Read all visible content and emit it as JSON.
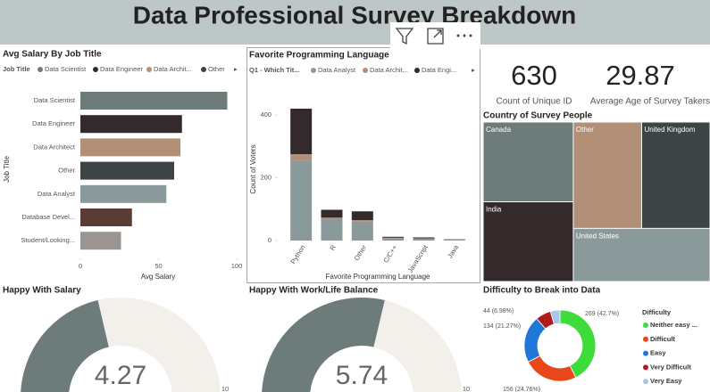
{
  "header": {
    "title": "Data Professional Survey Breakdown"
  },
  "cards": [
    {
      "value": 630,
      "label": "Count of Unique ID"
    },
    {
      "value": 29.87,
      "label": "Average Age of Survey Takers"
    }
  ],
  "chart_data": [
    {
      "type": "hbar",
      "title": "Avg Salary By Job Title",
      "legend_title": "Job Title",
      "legend": [
        "Data Scientist",
        "Data Engineer",
        "Data Archit...",
        "Other"
      ],
      "categories": [
        "Data Scientist",
        "Data Engineer",
        "Data Architect",
        "Other",
        "Data Analyst",
        "Database Devel...",
        "Student/Looking..."
      ],
      "values": [
        94,
        65,
        64,
        60,
        55,
        33,
        26
      ],
      "colors": [
        "#6e7b7b",
        "#352a2b",
        "#b28f77",
        "#3d4446",
        "#8a9a9b",
        "#5a3c35",
        "#9a9590"
      ],
      "xlabel": "Avg Salary",
      "ylabel": "Job Title",
      "xlim": [
        0,
        100
      ],
      "xticks": [
        0,
        50,
        100
      ]
    },
    {
      "type": "stacked_bar",
      "title": "Favorite Programming Language",
      "legend_title": "Q1 - Which Tit...",
      "categories": [
        "Python",
        "R",
        "Other",
        "C/C++",
        "JavaScript",
        "Java"
      ],
      "series": [
        {
          "name": "Data Analyst",
          "color": "#8a9a9b",
          "values": [
            255,
            68,
            60,
            8,
            6,
            3
          ]
        },
        {
          "name": "Data Archit...",
          "color": "#b28f77",
          "values": [
            20,
            5,
            5,
            1,
            1,
            0
          ]
        },
        {
          "name": "Data Engi...",
          "color": "#352a2b",
          "values": [
            145,
            25,
            28,
            3,
            3,
            1
          ]
        }
      ],
      "xlabel": "Favorite Programming Language",
      "ylabel": "Count of Voters",
      "ylim": [
        0,
        450
      ],
      "yticks": [
        0,
        200,
        400
      ]
    },
    {
      "type": "treemap",
      "title": "Country of Survey People",
      "categories": [
        "Canada",
        "India",
        "Other",
        "United Kingdom",
        "United States"
      ],
      "values": [
        89,
        89,
        90,
        90,
        90
      ],
      "colors": [
        "#6e7b7b",
        "#352a2b",
        "#b28f77",
        "#3d4446",
        "#8a9a9b"
      ]
    },
    {
      "type": "gauge",
      "title": "Happy With Salary",
      "value": 4.27,
      "ylim": [
        0,
        10
      ],
      "color": "#6e7b7b",
      "track_color": "#f3efea"
    },
    {
      "type": "gauge",
      "title": "Happy With Work/Life Balance",
      "value": 5.74,
      "ylim": [
        0,
        10
      ],
      "color": "#6e7b7b",
      "track_color": "#f3efea"
    },
    {
      "type": "donut",
      "title": "Difficulty to Break into Data",
      "legend_title": "Difficulty",
      "categories": [
        "Neither easy ...",
        "Difficult",
        "Easy",
        "Very Difficult",
        "Very Easy"
      ],
      "values": [
        269,
        156,
        134,
        44,
        27
      ],
      "value_labels": [
        "269 (42.7%)",
        "156 (24.76%)",
        "134 (21.27%)",
        "44 (6.98%)",
        null
      ],
      "colors": [
        "#3ddc3a",
        "#e8471a",
        "#1f78d8",
        "#b01c1c",
        "#a7c7ea"
      ]
    }
  ]
}
